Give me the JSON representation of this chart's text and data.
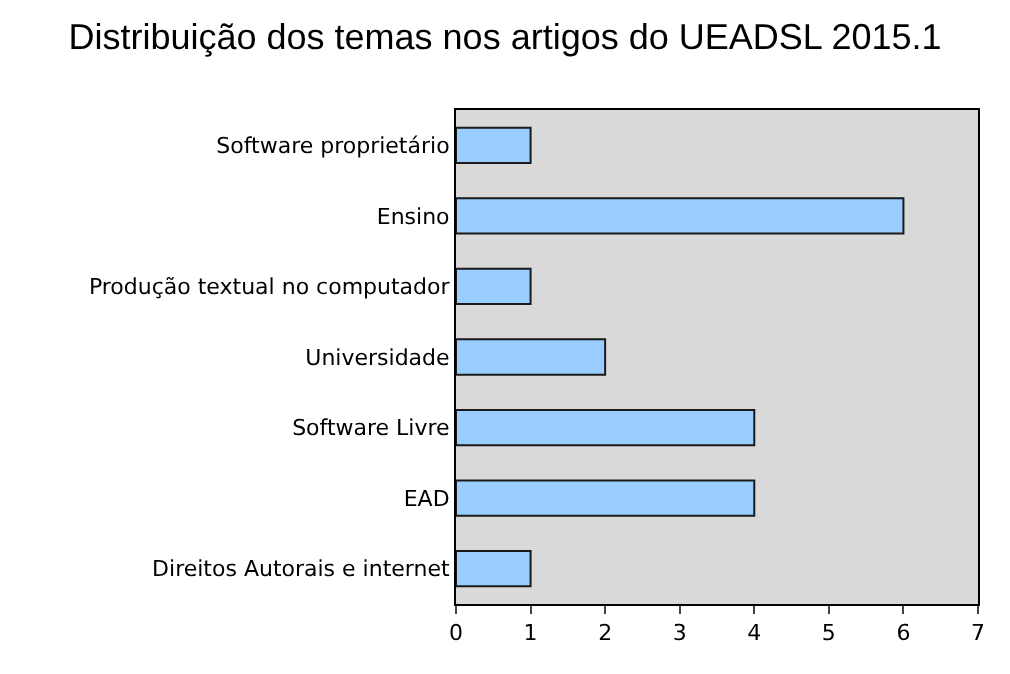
{
  "chart_data": {
    "type": "bar",
    "orientation": "horizontal",
    "title": "Distribuição dos temas nos artigos do UEADSL 2015.1",
    "categories": [
      "Software proprietário",
      "Ensino",
      "Produção textual no computador",
      "Universidade",
      "Software Livre",
      "EAD",
      "Direitos Autorais e internet"
    ],
    "values": [
      1,
      6,
      1,
      2,
      4,
      4,
      1
    ],
    "color": "#99ccff",
    "xlim": [
      0,
      7
    ],
    "xticks": [
      0,
      1,
      2,
      3,
      4,
      5,
      6,
      7
    ],
    "grid": false
  }
}
